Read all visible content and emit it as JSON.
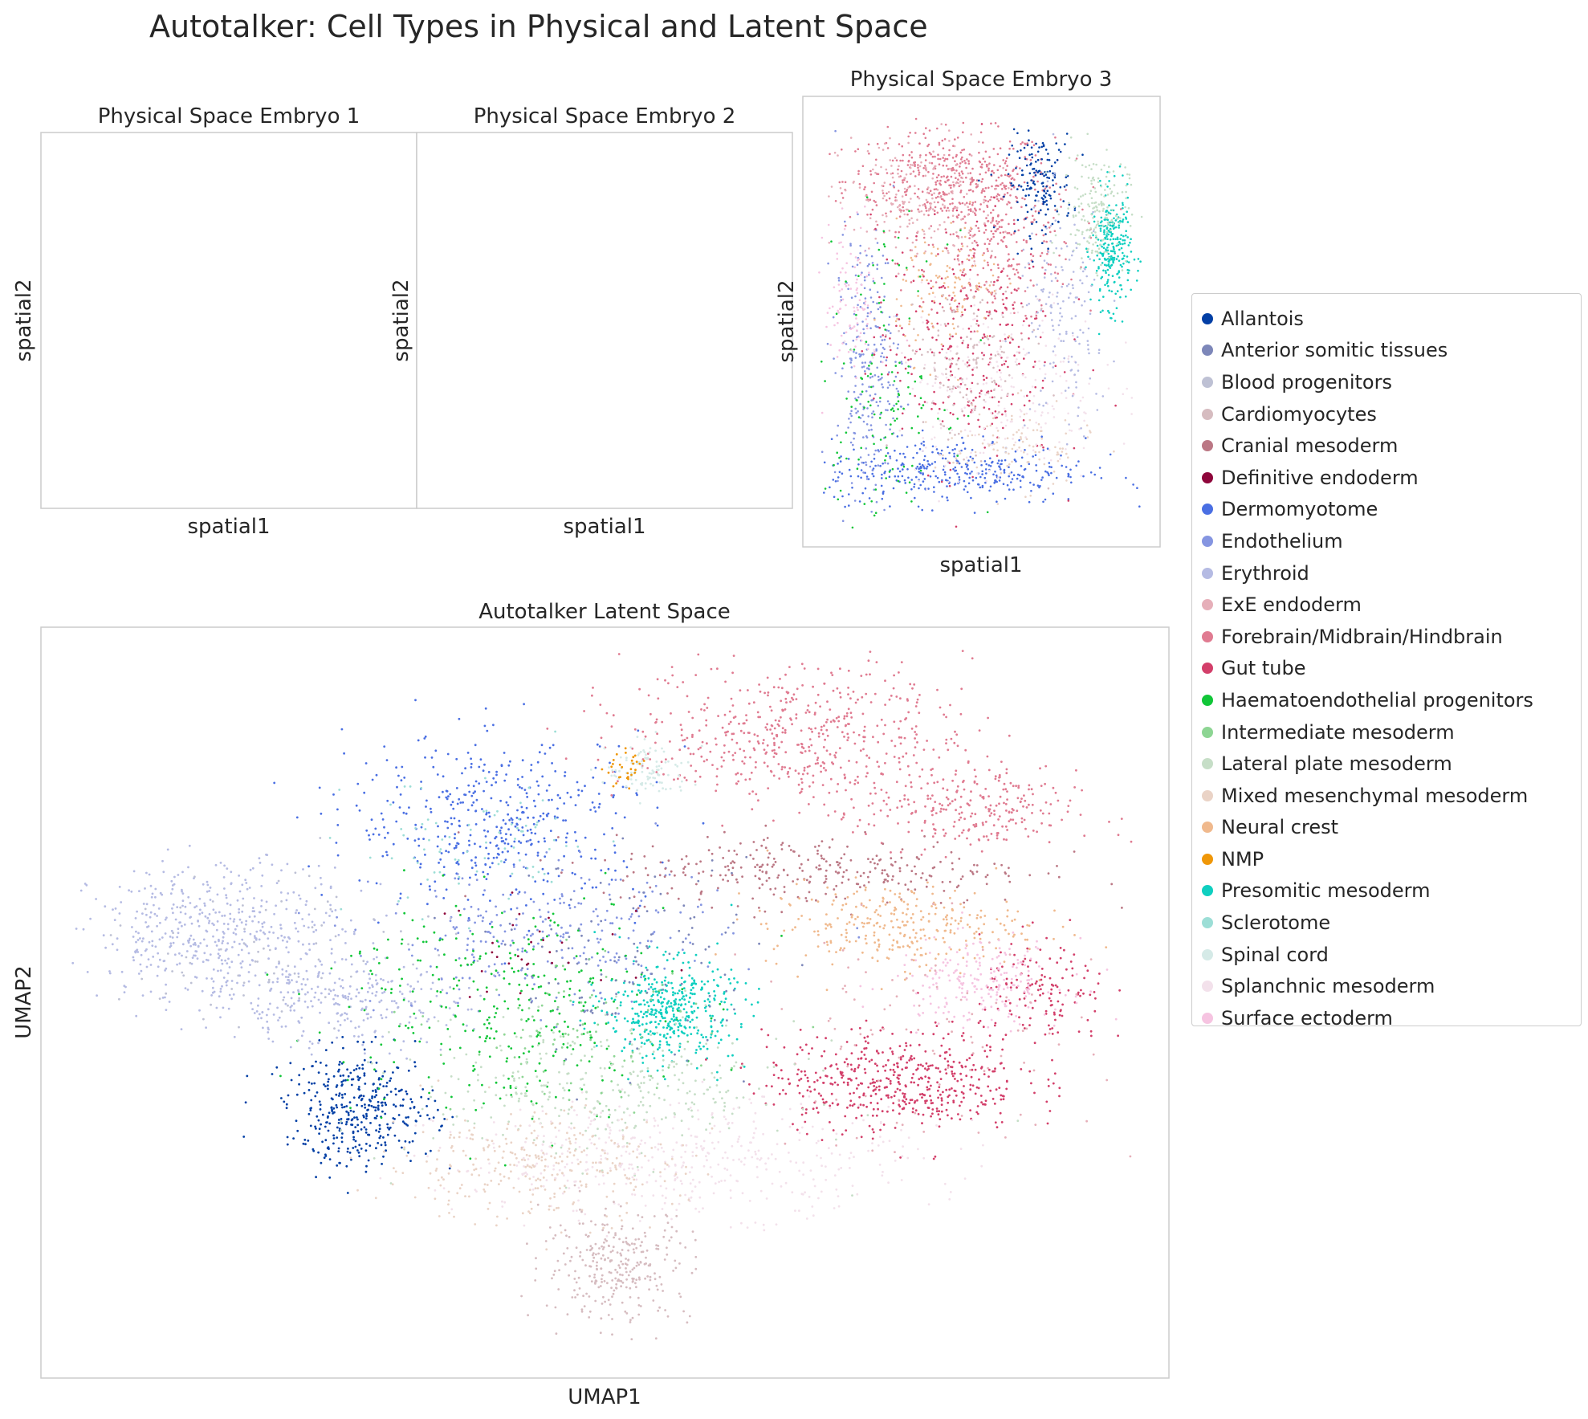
{
  "figure": {
    "title": "Autotalker: Cell Types in Physical and Latent Space"
  },
  "chart_data": [
    {
      "type": "scatter",
      "title": "Physical Space Embryo 1",
      "xlabel": "spatial1",
      "ylabel": "spatial2",
      "grid": false,
      "points": []
    },
    {
      "type": "scatter",
      "title": "Physical Space Embryo 2",
      "xlabel": "spatial1",
      "ylabel": "spatial2",
      "grid": false,
      "points": []
    },
    {
      "type": "scatter",
      "title": "Physical Space Embryo 3",
      "xlabel": "spatial1",
      "ylabel": "spatial2",
      "grid": false,
      "xlim": [
        0,
        100
      ],
      "ylim": [
        0,
        100
      ],
      "clusters": [
        {
          "series": "Forebrain/Midbrain/Hindbrain",
          "cx": 40,
          "cy": 85,
          "sx": 16,
          "sy": 6,
          "n": 420
        },
        {
          "series": "Forebrain/Midbrain/Hindbrain",
          "cx": 55,
          "cy": 70,
          "sx": 12,
          "sy": 10,
          "n": 300
        },
        {
          "series": "ExE endoderm",
          "cx": 30,
          "cy": 80,
          "sx": 12,
          "sy": 8,
          "n": 200
        },
        {
          "series": "Allantois",
          "cx": 68,
          "cy": 84,
          "sx": 5,
          "sy": 6,
          "n": 160
        },
        {
          "series": "Presomitic mesoderm",
          "cx": 90,
          "cy": 68,
          "sx": 3,
          "sy": 7,
          "n": 260
        },
        {
          "series": "Lateral plate mesoderm",
          "cx": 85,
          "cy": 78,
          "sx": 5,
          "sy": 7,
          "n": 180
        },
        {
          "series": "Dermomyotome",
          "cx": 42,
          "cy": 14,
          "sx": 20,
          "sy": 4,
          "n": 360
        },
        {
          "series": "Endothelium",
          "cx": 15,
          "cy": 40,
          "sx": 5,
          "sy": 16,
          "n": 260
        },
        {
          "series": "Gut tube",
          "cx": 45,
          "cy": 45,
          "sx": 14,
          "sy": 15,
          "n": 300
        },
        {
          "series": "Splanchnic mesoderm",
          "cx": 55,
          "cy": 35,
          "sx": 16,
          "sy": 12,
          "n": 260
        },
        {
          "series": "Neural crest",
          "cx": 40,
          "cy": 58,
          "sx": 8,
          "sy": 8,
          "n": 120
        },
        {
          "series": "Erythroid",
          "cx": 75,
          "cy": 50,
          "sx": 7,
          "sy": 14,
          "n": 160
        },
        {
          "series": "Haematoendothelial progenitors",
          "cx": 20,
          "cy": 35,
          "sx": 10,
          "sy": 18,
          "n": 140
        },
        {
          "series": "Cardiomyocytes",
          "cx": 45,
          "cy": 40,
          "sx": 10,
          "sy": 10,
          "n": 140
        },
        {
          "series": "Surface ectoderm",
          "cx": 10,
          "cy": 55,
          "sx": 4,
          "sy": 10,
          "n": 100
        },
        {
          "series": "Mixed mesenchymal mesoderm",
          "cx": 60,
          "cy": 20,
          "sx": 12,
          "sy": 5,
          "n": 100
        }
      ]
    },
    {
      "type": "scatter",
      "title": "Autotalker Latent Space",
      "xlabel": "UMAP1",
      "ylabel": "UMAP2",
      "grid": false,
      "xlim": [
        0,
        100
      ],
      "ylim": [
        0,
        100
      ],
      "clusters": [
        {
          "series": "Erythroid",
          "cx": 14,
          "cy": 60,
          "sx": 6,
          "sy": 5,
          "n": 500
        },
        {
          "series": "Erythroid",
          "cx": 25,
          "cy": 50,
          "sx": 6,
          "sy": 3,
          "n": 250
        },
        {
          "series": "Dermomyotome",
          "cx": 40,
          "cy": 76,
          "sx": 7,
          "sy": 6,
          "n": 450
        },
        {
          "series": "Endothelium",
          "cx": 45,
          "cy": 59,
          "sx": 8,
          "sy": 5,
          "n": 260
        },
        {
          "series": "Allantois",
          "cx": 27,
          "cy": 35,
          "sx": 3.5,
          "sy": 4,
          "n": 380
        },
        {
          "series": "Haematoendothelial progenitors",
          "cx": 40,
          "cy": 50,
          "sx": 8,
          "sy": 8,
          "n": 320
        },
        {
          "series": "Presomitic mesoderm",
          "cx": 56,
          "cy": 49,
          "sx": 3,
          "sy": 3.5,
          "n": 420
        },
        {
          "series": "Forebrain/Midbrain/Hindbrain",
          "cx": 68,
          "cy": 88,
          "sx": 8,
          "sy": 5,
          "n": 550
        },
        {
          "series": "Forebrain/Midbrain/Hindbrain",
          "cx": 84,
          "cy": 77,
          "sx": 5,
          "sy": 3,
          "n": 250
        },
        {
          "series": "Cranial mesoderm",
          "cx": 70,
          "cy": 69,
          "sx": 10,
          "sy": 2.5,
          "n": 300
        },
        {
          "series": "Neural crest",
          "cx": 77,
          "cy": 61,
          "sx": 6,
          "sy": 3,
          "n": 300
        },
        {
          "series": "Gut tube",
          "cx": 77,
          "cy": 39,
          "sx": 6,
          "sy": 3.5,
          "n": 500
        },
        {
          "series": "Gut tube",
          "cx": 91,
          "cy": 51,
          "sx": 3,
          "sy": 4,
          "n": 150
        },
        {
          "series": "Surface ectoderm",
          "cx": 85,
          "cy": 53,
          "sx": 4,
          "sy": 3,
          "n": 220
        },
        {
          "series": "Lateral plate mesoderm",
          "cx": 50,
          "cy": 38,
          "sx": 9,
          "sy": 5,
          "n": 320
        },
        {
          "series": "Splanchnic mesoderm",
          "cx": 57,
          "cy": 28,
          "sx": 11,
          "sy": 4,
          "n": 460
        },
        {
          "series": "Mixed mesenchymal mesoderm",
          "cx": 43,
          "cy": 27,
          "sx": 7,
          "sy": 4,
          "n": 300
        },
        {
          "series": "Cardiomyocytes",
          "cx": 51,
          "cy": 13,
          "sx": 3.5,
          "sy": 4,
          "n": 300
        },
        {
          "series": "Spinal cord",
          "cx": 54,
          "cy": 83,
          "sx": 2,
          "sy": 2,
          "n": 100
        },
        {
          "series": "NMP",
          "cx": 52,
          "cy": 83,
          "sx": 1,
          "sy": 1.2,
          "n": 30
        },
        {
          "series": "Anterior somitic tissues",
          "cx": 52,
          "cy": 56,
          "sx": 6,
          "sy": 7,
          "n": 120
        },
        {
          "series": "Intermediate mesoderm",
          "cx": 48,
          "cy": 45,
          "sx": 6,
          "sy": 5,
          "n": 100
        },
        {
          "series": "Sclerotome",
          "cx": 38,
          "cy": 72,
          "sx": 6,
          "sy": 5,
          "n": 80
        },
        {
          "series": "ExE endoderm",
          "cx": 80,
          "cy": 45,
          "sx": 8,
          "sy": 8,
          "n": 100
        },
        {
          "series": "Definitive endoderm",
          "cx": 44,
          "cy": 57,
          "sx": 6,
          "sy": 4,
          "n": 30
        },
        {
          "series": "Blood progenitors",
          "cx": 20,
          "cy": 58,
          "sx": 8,
          "sy": 6,
          "n": 80
        }
      ]
    }
  ],
  "legend": {
    "placement": "right",
    "entries": [
      {
        "name": "Allantois",
        "color": "#023fa5"
      },
      {
        "name": "Anterior somitic tissues",
        "color": "#7d87b9"
      },
      {
        "name": "Blood progenitors",
        "color": "#bec1d4"
      },
      {
        "name": "Cardiomyocytes",
        "color": "#d6bcc0"
      },
      {
        "name": "Cranial mesoderm",
        "color": "#bb7784"
      },
      {
        "name": "Definitive endoderm",
        "color": "#8e063b"
      },
      {
        "name": "Dermomyotome",
        "color": "#4a6fe3"
      },
      {
        "name": "Endothelium",
        "color": "#8595e1"
      },
      {
        "name": "Erythroid",
        "color": "#b5bbe3"
      },
      {
        "name": "ExE endoderm",
        "color": "#e6afb9"
      },
      {
        "name": "Forebrain/Midbrain/Hindbrain",
        "color": "#e07b91"
      },
      {
        "name": "Gut tube",
        "color": "#d33f6a"
      },
      {
        "name": "Haematoendothelial progenitors",
        "color": "#11c638"
      },
      {
        "name": "Intermediate mesoderm",
        "color": "#8dd593"
      },
      {
        "name": "Lateral plate mesoderm",
        "color": "#c6dec7"
      },
      {
        "name": "Mixed mesenchymal mesoderm",
        "color": "#ead3c6"
      },
      {
        "name": "Neural crest",
        "color": "#f0b98d"
      },
      {
        "name": "NMP",
        "color": "#ef9708"
      },
      {
        "name": "Presomitic mesoderm",
        "color": "#0fcfc0"
      },
      {
        "name": "Sclerotome",
        "color": "#9cded6"
      },
      {
        "name": "Spinal cord",
        "color": "#d5eae7"
      },
      {
        "name": "Splanchnic mesoderm",
        "color": "#f3e1eb"
      },
      {
        "name": "Surface ectoderm",
        "color": "#f6c4e1"
      }
    ]
  }
}
